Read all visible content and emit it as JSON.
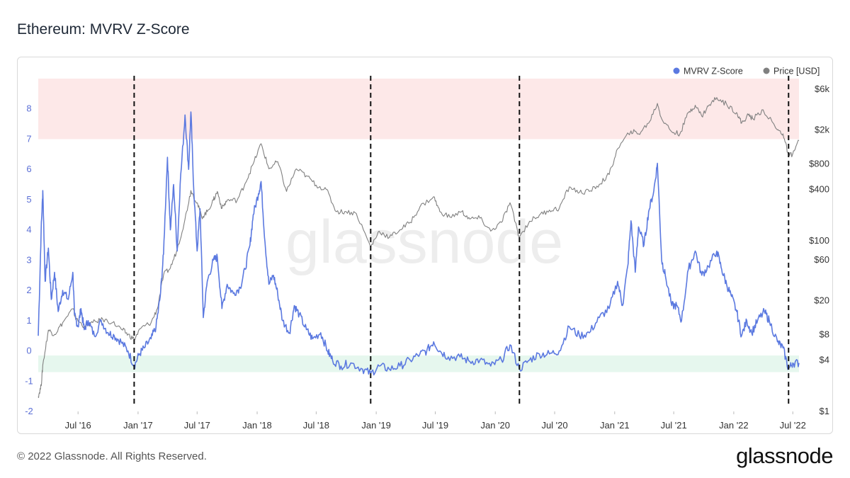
{
  "page": {
    "title": "Ethereum: MVRV Z-Score",
    "footer": "© 2022 Glassnode. All Rights Reserved.",
    "brand": "glassnode",
    "watermark": "glassnode"
  },
  "chart_data": {
    "type": "line",
    "title": "Ethereum: MVRV Z-Score",
    "x_range": [
      "2016-03-01",
      "2022-07-20"
    ],
    "x_ticks": [
      {
        "date": "2016-07-01",
        "label": "Jul '16"
      },
      {
        "date": "2017-01-01",
        "label": "Jan '17"
      },
      {
        "date": "2017-07-01",
        "label": "Jul '17"
      },
      {
        "date": "2018-01-01",
        "label": "Jan '18"
      },
      {
        "date": "2018-07-01",
        "label": "Jul '18"
      },
      {
        "date": "2019-01-01",
        "label": "Jan '19"
      },
      {
        "date": "2019-07-01",
        "label": "Jul '19"
      },
      {
        "date": "2020-01-01",
        "label": "Jan '20"
      },
      {
        "date": "2020-07-01",
        "label": "Jul '20"
      },
      {
        "date": "2021-01-01",
        "label": "Jan '21"
      },
      {
        "date": "2021-07-01",
        "label": "Jul '21"
      },
      {
        "date": "2022-01-01",
        "label": "Jan '22"
      },
      {
        "date": "2022-07-01",
        "label": "Jul '22"
      }
    ],
    "left_axis": {
      "scale": "linear",
      "range": [
        -2,
        9
      ],
      "ticks": [
        -2,
        -1,
        0,
        1,
        2,
        3,
        4,
        5,
        6,
        7,
        8
      ],
      "color": "#5b6fd6"
    },
    "right_axis": {
      "scale": "log",
      "range": [
        1,
        8000
      ],
      "ticks": [
        {
          "value": 1,
          "label": "$1"
        },
        {
          "value": 4,
          "label": "$4"
        },
        {
          "value": 8,
          "label": "$8"
        },
        {
          "value": 20,
          "label": "$20"
        },
        {
          "value": 60,
          "label": "$60"
        },
        {
          "value": 100,
          "label": "$100"
        },
        {
          "value": 400,
          "label": "$400"
        },
        {
          "value": 800,
          "label": "$800"
        },
        {
          "value": 2000,
          "label": "$2k"
        },
        {
          "value": 6000,
          "label": "$6k"
        }
      ]
    },
    "zones": [
      {
        "name": "overvalued",
        "from": 7,
        "to": 9,
        "color": "#fde8e8"
      },
      {
        "name": "undervalued",
        "from": -0.7,
        "to": -0.15,
        "color": "#e6f7ee"
      }
    ],
    "markers": [
      "2016-12-20",
      "2018-12-15",
      "2020-03-15",
      "2022-06-18"
    ],
    "legend": {
      "position": "top-right",
      "items": [
        {
          "name": "MVRV Z-Score",
          "color": "#5b79e0"
        },
        {
          "name": "Price [USD]",
          "color": "#808080"
        }
      ]
    },
    "series": [
      {
        "name": "MVRV Z-Score",
        "axis": "left",
        "color": "#5b79e0",
        "points": [
          [
            "2016-03-01",
            0.5
          ],
          [
            "2016-03-10",
            4.0
          ],
          [
            "2016-03-15",
            5.3
          ],
          [
            "2016-03-22",
            2.3
          ],
          [
            "2016-04-01",
            3.4
          ],
          [
            "2016-04-10",
            1.7
          ],
          [
            "2016-04-20",
            2.6
          ],
          [
            "2016-05-01",
            1.3
          ],
          [
            "2016-05-15",
            2.0
          ],
          [
            "2016-06-01",
            1.7
          ],
          [
            "2016-06-15",
            2.6
          ],
          [
            "2016-06-20",
            1.2
          ],
          [
            "2016-07-01",
            0.8
          ],
          [
            "2016-07-10",
            1.4
          ],
          [
            "2016-07-20",
            0.7
          ],
          [
            "2016-08-01",
            1.0
          ],
          [
            "2016-08-20",
            0.5
          ],
          [
            "2016-09-10",
            1.0
          ],
          [
            "2016-10-01",
            0.6
          ],
          [
            "2016-10-20",
            0.5
          ],
          [
            "2016-11-10",
            0.3
          ],
          [
            "2016-12-01",
            0.0
          ],
          [
            "2016-12-20",
            -0.5
          ],
          [
            "2017-01-05",
            -0.1
          ],
          [
            "2017-01-20",
            0.1
          ],
          [
            "2017-02-10",
            0.4
          ],
          [
            "2017-02-25",
            0.8
          ],
          [
            "2017-03-10",
            1.8
          ],
          [
            "2017-03-20",
            3.2
          ],
          [
            "2017-04-01",
            6.4
          ],
          [
            "2017-04-10",
            4.0
          ],
          [
            "2017-04-20",
            5.5
          ],
          [
            "2017-05-01",
            3.3
          ],
          [
            "2017-05-10",
            5.5
          ],
          [
            "2017-05-25",
            7.8
          ],
          [
            "2017-06-05",
            6.0
          ],
          [
            "2017-06-12",
            7.9
          ],
          [
            "2017-06-20",
            5.5
          ],
          [
            "2017-07-01",
            3.3
          ],
          [
            "2017-07-10",
            4.7
          ],
          [
            "2017-07-20",
            1.1
          ],
          [
            "2017-08-01",
            2.3
          ],
          [
            "2017-08-20",
            3.0
          ],
          [
            "2017-09-01",
            3.1
          ],
          [
            "2017-09-15",
            1.4
          ],
          [
            "2017-10-01",
            2.2
          ],
          [
            "2017-10-20",
            1.9
          ],
          [
            "2017-11-10",
            2.1
          ],
          [
            "2017-11-25",
            2.7
          ],
          [
            "2017-12-10",
            3.5
          ],
          [
            "2017-12-20",
            4.5
          ],
          [
            "2018-01-05",
            5.2
          ],
          [
            "2018-01-13",
            5.6
          ],
          [
            "2018-01-25",
            3.6
          ],
          [
            "2018-02-06",
            2.2
          ],
          [
            "2018-02-20",
            2.5
          ],
          [
            "2018-03-05",
            1.9
          ],
          [
            "2018-03-20",
            1.0
          ],
          [
            "2018-04-10",
            0.6
          ],
          [
            "2018-04-25",
            1.5
          ],
          [
            "2018-05-10",
            1.2
          ],
          [
            "2018-06-01",
            0.7
          ],
          [
            "2018-06-20",
            0.4
          ],
          [
            "2018-07-15",
            0.6
          ],
          [
            "2018-08-05",
            0.0
          ],
          [
            "2018-08-20",
            -0.3
          ],
          [
            "2018-09-15",
            -0.5
          ],
          [
            "2018-10-15",
            -0.4
          ],
          [
            "2018-11-20",
            -0.6
          ],
          [
            "2018-12-15",
            -0.75
          ],
          [
            "2019-01-10",
            -0.5
          ],
          [
            "2019-02-10",
            -0.6
          ],
          [
            "2019-03-15",
            -0.5
          ],
          [
            "2019-04-15",
            -0.3
          ],
          [
            "2019-05-15",
            -0.1
          ],
          [
            "2019-06-05",
            0.0
          ],
          [
            "2019-06-26",
            0.3
          ],
          [
            "2019-07-15",
            0.0
          ],
          [
            "2019-08-10",
            -0.2
          ],
          [
            "2019-09-15",
            -0.2
          ],
          [
            "2019-10-15",
            -0.35
          ],
          [
            "2019-11-15",
            -0.3
          ],
          [
            "2019-12-18",
            -0.5
          ],
          [
            "2020-01-20",
            -0.3
          ],
          [
            "2020-02-15",
            0.2
          ],
          [
            "2020-03-15",
            -0.6
          ],
          [
            "2020-04-15",
            -0.3
          ],
          [
            "2020-05-15",
            -0.1
          ],
          [
            "2020-06-15",
            -0.1
          ],
          [
            "2020-07-15",
            0.0
          ],
          [
            "2020-08-15",
            0.8
          ],
          [
            "2020-09-15",
            0.5
          ],
          [
            "2020-10-15",
            0.6
          ],
          [
            "2020-11-15",
            1.1
          ],
          [
            "2020-12-15",
            1.4
          ],
          [
            "2021-01-10",
            2.3
          ],
          [
            "2021-01-25",
            1.5
          ],
          [
            "2021-02-10",
            2.8
          ],
          [
            "2021-02-20",
            4.3
          ],
          [
            "2021-03-05",
            2.6
          ],
          [
            "2021-03-15",
            4.1
          ],
          [
            "2021-04-01",
            3.5
          ],
          [
            "2021-04-15",
            4.6
          ],
          [
            "2021-05-01",
            5.3
          ],
          [
            "2021-05-12",
            6.2
          ],
          [
            "2021-05-25",
            3.0
          ],
          [
            "2021-06-05",
            2.5
          ],
          [
            "2021-06-25",
            1.5
          ],
          [
            "2021-07-10",
            1.5
          ],
          [
            "2021-07-25",
            1.0
          ],
          [
            "2021-08-15",
            2.7
          ],
          [
            "2021-09-05",
            3.3
          ],
          [
            "2021-09-25",
            2.5
          ],
          [
            "2021-10-15",
            2.8
          ],
          [
            "2021-11-10",
            3.3
          ],
          [
            "2021-11-25",
            2.7
          ],
          [
            "2021-12-10",
            2.2
          ],
          [
            "2021-12-25",
            1.8
          ],
          [
            "2022-01-10",
            1.3
          ],
          [
            "2022-01-25",
            0.5
          ],
          [
            "2022-02-10",
            1.0
          ],
          [
            "2022-02-25",
            0.6
          ],
          [
            "2022-03-15",
            1.0
          ],
          [
            "2022-04-05",
            1.3
          ],
          [
            "2022-04-20",
            1.0
          ],
          [
            "2022-05-15",
            0.3
          ],
          [
            "2022-06-01",
            0.1
          ],
          [
            "2022-06-18",
            -0.6
          ],
          [
            "2022-07-01",
            -0.4
          ],
          [
            "2022-07-20",
            -0.4
          ]
        ]
      },
      {
        "name": "Price [USD]",
        "axis": "right",
        "color": "#808080",
        "points": [
          [
            "2016-03-01",
            1.5
          ],
          [
            "2016-03-10",
            2.0
          ],
          [
            "2016-03-15",
            3.5
          ],
          [
            "2016-04-01",
            9
          ],
          [
            "2016-04-20",
            8
          ],
          [
            "2016-05-15",
            11
          ],
          [
            "2016-06-15",
            16
          ],
          [
            "2016-06-25",
            12
          ],
          [
            "2016-07-20",
            10
          ],
          [
            "2016-08-15",
            11
          ],
          [
            "2016-09-15",
            12
          ],
          [
            "2016-10-15",
            11
          ],
          [
            "2016-11-15",
            9
          ],
          [
            "2016-12-01",
            8
          ],
          [
            "2016-12-20",
            7
          ],
          [
            "2017-01-10",
            9.5
          ],
          [
            "2017-02-10",
            11
          ],
          [
            "2017-03-01",
            16
          ],
          [
            "2017-03-20",
            40
          ],
          [
            "2017-04-10",
            48
          ],
          [
            "2017-05-01",
            80
          ],
          [
            "2017-05-25",
            180
          ],
          [
            "2017-06-12",
            390
          ],
          [
            "2017-07-01",
            280
          ],
          [
            "2017-07-15",
            190
          ],
          [
            "2017-08-01",
            220
          ],
          [
            "2017-08-20",
            300
          ],
          [
            "2017-09-01",
            380
          ],
          [
            "2017-09-15",
            240
          ],
          [
            "2017-10-01",
            300
          ],
          [
            "2017-11-01",
            300
          ],
          [
            "2017-11-25",
            470
          ],
          [
            "2017-12-20",
            800
          ],
          [
            "2018-01-13",
            1380
          ],
          [
            "2018-02-06",
            700
          ],
          [
            "2018-03-05",
            850
          ],
          [
            "2018-04-01",
            380
          ],
          [
            "2018-05-01",
            700
          ],
          [
            "2018-06-01",
            580
          ],
          [
            "2018-07-01",
            450
          ],
          [
            "2018-08-01",
            400
          ],
          [
            "2018-09-01",
            220
          ],
          [
            "2018-10-01",
            220
          ],
          [
            "2018-11-01",
            210
          ],
          [
            "2018-12-15",
            85
          ],
          [
            "2019-01-10",
            130
          ],
          [
            "2019-02-10",
            110
          ],
          [
            "2019-03-15",
            135
          ],
          [
            "2019-04-15",
            165
          ],
          [
            "2019-05-15",
            250
          ],
          [
            "2019-06-26",
            330
          ],
          [
            "2019-07-15",
            220
          ],
          [
            "2019-08-15",
            190
          ],
          [
            "2019-09-20",
            220
          ],
          [
            "2019-10-15",
            180
          ],
          [
            "2019-11-15",
            185
          ],
          [
            "2019-12-18",
            130
          ],
          [
            "2020-01-20",
            165
          ],
          [
            "2020-02-15",
            280
          ],
          [
            "2020-03-15",
            110
          ],
          [
            "2020-04-15",
            170
          ],
          [
            "2020-05-15",
            200
          ],
          [
            "2020-06-15",
            230
          ],
          [
            "2020-07-15",
            240
          ],
          [
            "2020-08-15",
            430
          ],
          [
            "2020-09-15",
            370
          ],
          [
            "2020-10-15",
            380
          ],
          [
            "2020-11-15",
            460
          ],
          [
            "2020-12-15",
            600
          ],
          [
            "2021-01-10",
            1200
          ],
          [
            "2021-02-20",
            1950
          ],
          [
            "2021-03-15",
            1800
          ],
          [
            "2021-04-15",
            2400
          ],
          [
            "2021-05-12",
            4100
          ],
          [
            "2021-05-25",
            2700
          ],
          [
            "2021-06-25",
            1900
          ],
          [
            "2021-07-20",
            1800
          ],
          [
            "2021-08-15",
            3200
          ],
          [
            "2021-09-05",
            3900
          ],
          [
            "2021-09-25",
            2900
          ],
          [
            "2021-10-15",
            3800
          ],
          [
            "2021-11-10",
            4800
          ],
          [
            "2021-12-10",
            4000
          ],
          [
            "2022-01-10",
            3200
          ],
          [
            "2022-01-25",
            2400
          ],
          [
            "2022-02-15",
            3000
          ],
          [
            "2022-03-01",
            2700
          ],
          [
            "2022-04-01",
            3450
          ],
          [
            "2022-05-15",
            2000
          ],
          [
            "2022-06-01",
            1800
          ],
          [
            "2022-06-18",
            1000
          ],
          [
            "2022-07-01",
            1050
          ],
          [
            "2022-07-20",
            1500
          ]
        ]
      }
    ]
  }
}
